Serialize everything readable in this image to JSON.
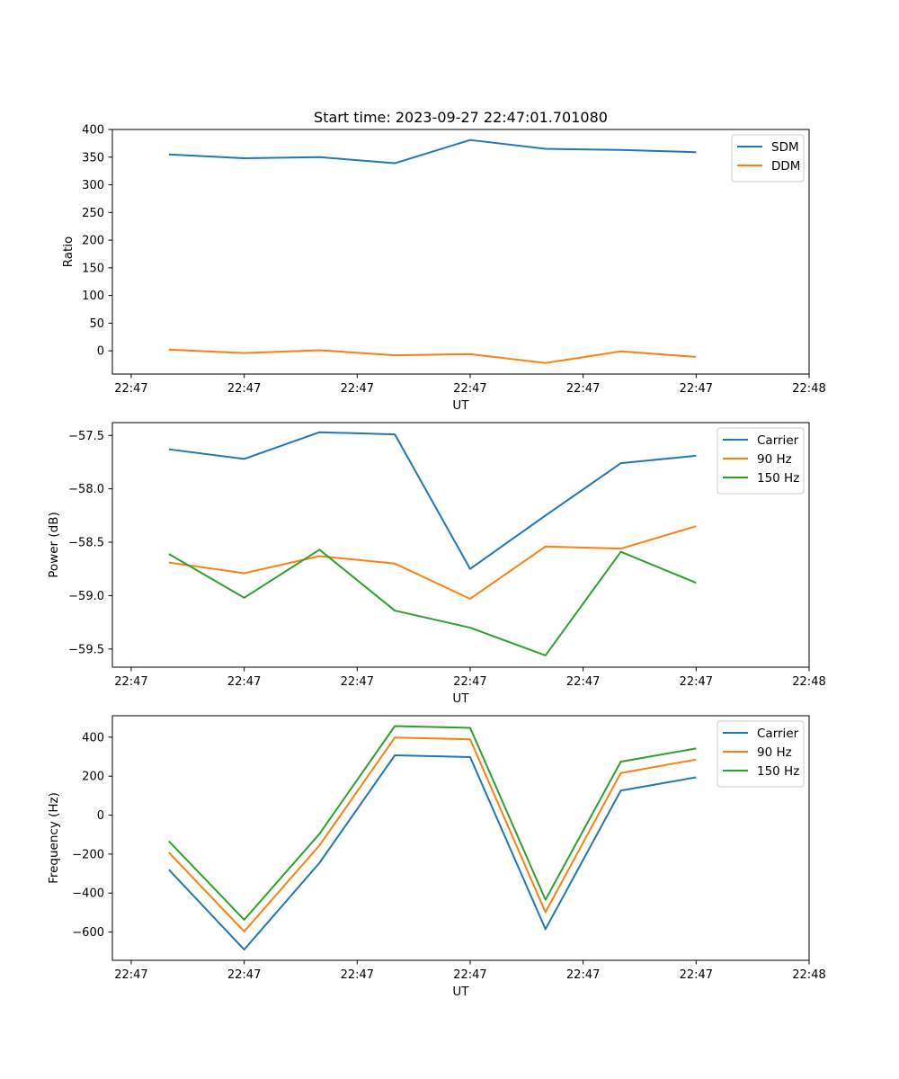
{
  "title": "Start time: 2023-09-27 22:47:01.701080",
  "chart_data": [
    {
      "type": "line",
      "title": "Start time: 2023-09-27 22:47:01.701080",
      "xlabel": "UT",
      "ylabel": "Ratio",
      "xlim": [
        -0.75,
        8.5
      ],
      "ylim": [
        -42,
        400
      ],
      "x": [
        0,
        1,
        2,
        3,
        4,
        5,
        6,
        7
      ],
      "x_ticks": [
        -0.5,
        1,
        2.5,
        4,
        5.5,
        7,
        8.5
      ],
      "x_tick_labels": [
        "22:47",
        "22:47",
        "22:47",
        "22:47",
        "22:47",
        "22:47",
        "22:48"
      ],
      "y_ticks": [
        0,
        50,
        100,
        150,
        200,
        250,
        300,
        350,
        400
      ],
      "y_tick_labels": [
        "0",
        "50",
        "100",
        "150",
        "200",
        "250",
        "300",
        "350",
        "400"
      ],
      "legend_position": "top-right",
      "series": [
        {
          "name": "SDM",
          "color": "#1f77b4",
          "values": [
            355,
            348,
            350,
            339,
            381,
            365,
            363,
            359
          ]
        },
        {
          "name": "DDM",
          "color": "#ff7f0e",
          "values": [
            2,
            -4,
            1,
            -8,
            -6,
            -22,
            -1,
            -11
          ]
        }
      ]
    },
    {
      "type": "line",
      "xlabel": "UT",
      "ylabel": "Power (dB)",
      "xlim": [
        -0.75,
        8.5
      ],
      "ylim": [
        -59.67,
        -57.38
      ],
      "x": [
        0,
        1,
        2,
        3,
        4,
        5,
        6,
        7
      ],
      "x_ticks": [
        -0.5,
        1,
        2.5,
        4,
        5.5,
        7,
        8.5
      ],
      "x_tick_labels": [
        "22:47",
        "22:47",
        "22:47",
        "22:47",
        "22:47",
        "22:47",
        "22:48"
      ],
      "y_ticks": [
        -57.5,
        -58.0,
        -58.5,
        -59.0,
        -59.5
      ],
      "y_tick_labels": [
        "−57.5",
        "−58.0",
        "−58.5",
        "−59.0",
        "−59.5"
      ],
      "legend_position": "top-right",
      "series": [
        {
          "name": "Carrier",
          "color": "#1f77b4",
          "values": [
            -57.63,
            -57.72,
            -57.47,
            -57.49,
            -58.75,
            -58.25,
            -57.76,
            -57.69
          ]
        },
        {
          "name": "90 Hz",
          "color": "#ff7f0e",
          "values": [
            -58.69,
            -58.79,
            -58.63,
            -58.7,
            -59.03,
            -58.54,
            -58.56,
            -58.35
          ]
        },
        {
          "name": "150 Hz",
          "color": "#2ca02c",
          "values": [
            -58.61,
            -59.02,
            -58.57,
            -59.14,
            -59.3,
            -59.56,
            -58.59,
            -58.88
          ]
        }
      ]
    },
    {
      "type": "line",
      "xlabel": "UT",
      "ylabel": "Frequency (Hz)",
      "xlim": [
        -0.75,
        8.5
      ],
      "ylim": [
        -745,
        510
      ],
      "x": [
        0,
        1,
        2,
        3,
        4,
        5,
        6,
        7
      ],
      "x_ticks": [
        -0.5,
        1,
        2.5,
        4,
        5.5,
        7,
        8.5
      ],
      "x_tick_labels": [
        "22:47",
        "22:47",
        "22:47",
        "22:47",
        "22:47",
        "22:47",
        "22:48"
      ],
      "y_ticks": [
        400,
        200,
        0,
        -200,
        -400,
        -600
      ],
      "y_tick_labels": [
        "400",
        "200",
        "0",
        "−200",
        "−400",
        "−600"
      ],
      "legend_position": "top-right",
      "series": [
        {
          "name": "Carrier",
          "color": "#1f77b4",
          "values": [
            -280,
            -690,
            -245,
            307,
            298,
            -585,
            126,
            194
          ]
        },
        {
          "name": "90 Hz",
          "color": "#ff7f0e",
          "values": [
            -192,
            -597,
            -155,
            398,
            389,
            -498,
            216,
            285
          ]
        },
        {
          "name": "150 Hz",
          "color": "#2ca02c",
          "values": [
            -134,
            -537,
            -96,
            457,
            448,
            -434,
            274,
            342
          ]
        }
      ]
    }
  ]
}
